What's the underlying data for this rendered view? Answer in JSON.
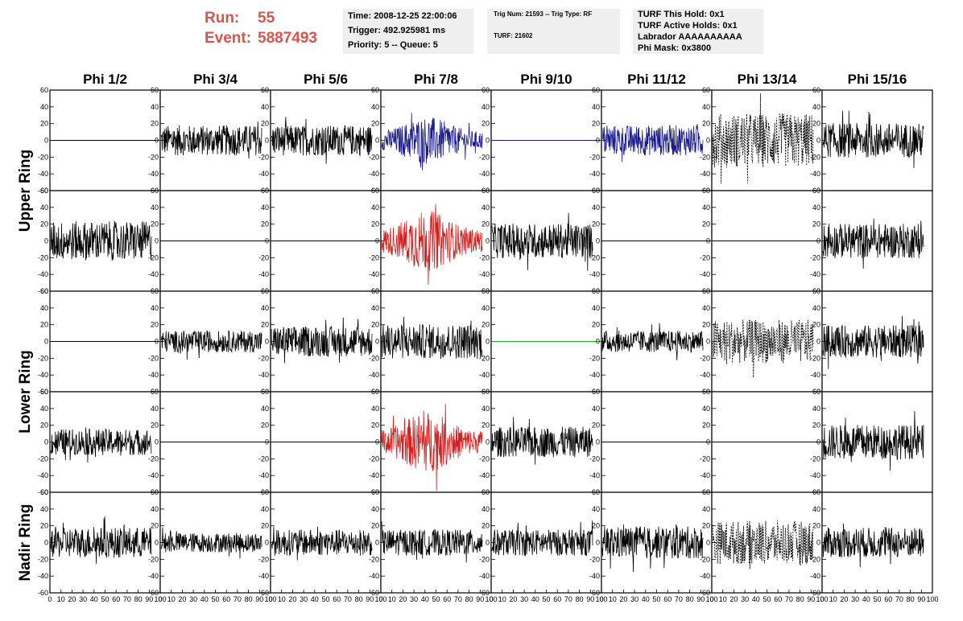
{
  "header": {
    "run_label": "Run:",
    "run_value": "55",
    "event_label": "Event:",
    "event_value": "5887493",
    "box1": [
      "Time: 2008-12-25 22:00:06",
      "Trigger: 492.925981 ms",
      "Priority: 5 -- Queue: 5"
    ],
    "box2": [
      "Trig Num: 21593 -- Trig Type: RF",
      "TURF: 21602"
    ],
    "box3": [
      "TURF This Hold: 0x1",
      "TURF Active Holds: 0x1",
      "Labrador AAAAAAAAAA",
      "Phi Mask: 0x3800"
    ]
  },
  "chart_data": {
    "type": "line",
    "title": "",
    "columns": [
      "Phi 1/2",
      "Phi 3/4",
      "Phi 5/6",
      "Phi 7/8",
      "Phi 9/10",
      "Phi 11/12",
      "Phi 13/14",
      "Phi 15/16"
    ],
    "ring_labels": [
      {
        "text": "Upper Ring",
        "rows": [
          0,
          1
        ]
      },
      {
        "text": "Lower Ring",
        "rows": [
          2,
          3
        ]
      },
      {
        "text": "Nadir Ring",
        "rows": [
          4
        ]
      }
    ],
    "ylim": [
      -60,
      60
    ],
    "y_ticks": [
      -60,
      -40,
      -20,
      0,
      20,
      40,
      60
    ],
    "xlim": [
      0,
      100
    ],
    "x_ticks": [
      0,
      10,
      20,
      30,
      40,
      50,
      60,
      70,
      80,
      90,
      100
    ],
    "samples": 260,
    "colors": {
      "normal": "#000000",
      "blue": "#1a1a8c",
      "red": "#cc2222",
      "green": "#22aa22"
    },
    "panels": [
      [
        {
          "style": "flat",
          "color": "normal"
        },
        {
          "style": "noise",
          "amp": 14,
          "color": "normal"
        },
        {
          "style": "noise",
          "amp": 14,
          "color": "normal"
        },
        {
          "style": "noise",
          "amp": 22,
          "env": true,
          "color": "blue"
        },
        {
          "style": "flat",
          "color": "blue"
        },
        {
          "style": "noise",
          "amp": 14,
          "color": "blue"
        },
        {
          "style": "dashed",
          "amp": 25,
          "color": "normal"
        },
        {
          "style": "noise",
          "amp": 16,
          "color": "normal"
        }
      ],
      [
        {
          "style": "noise",
          "amp": 18,
          "color": "normal"
        },
        {
          "style": "flat",
          "color": "normal"
        },
        {
          "style": "flat",
          "color": "normal"
        },
        {
          "style": "noise",
          "amp": 28,
          "env": true,
          "color": "red"
        },
        {
          "style": "noise",
          "amp": 16,
          "color": "normal"
        },
        {
          "style": "flat",
          "color": "normal"
        },
        {
          "style": "flat",
          "color": "normal"
        },
        {
          "style": "noise",
          "amp": 16,
          "color": "normal"
        }
      ],
      [
        {
          "style": "flat",
          "color": "normal"
        },
        {
          "style": "noise",
          "amp": 10,
          "color": "normal"
        },
        {
          "style": "noise",
          "amp": 14,
          "color": "normal"
        },
        {
          "style": "noise",
          "amp": 16,
          "color": "normal"
        },
        {
          "style": "flat",
          "color": "green"
        },
        {
          "style": "noise",
          "amp": 10,
          "color": "normal"
        },
        {
          "style": "dashed",
          "amp": 20,
          "color": "normal"
        },
        {
          "style": "noise",
          "amp": 15,
          "color": "normal"
        }
      ],
      [
        {
          "style": "noise",
          "amp": 12,
          "color": "normal"
        },
        {
          "style": "flat",
          "color": "normal"
        },
        {
          "style": "flat",
          "color": "normal"
        },
        {
          "style": "noise",
          "amp": 28,
          "env": true,
          "color": "red"
        },
        {
          "style": "noise",
          "amp": 14,
          "color": "normal"
        },
        {
          "style": "flat",
          "color": "normal"
        },
        {
          "style": "flat",
          "color": "normal"
        },
        {
          "style": "noise",
          "amp": 16,
          "color": "normal"
        }
      ],
      [
        {
          "style": "noise",
          "amp": 14,
          "color": "normal"
        },
        {
          "style": "noise",
          "amp": 9,
          "color": "normal"
        },
        {
          "style": "noise",
          "amp": 12,
          "color": "normal"
        },
        {
          "style": "noise",
          "amp": 12,
          "color": "normal"
        },
        {
          "style": "noise",
          "amp": 12,
          "color": "normal"
        },
        {
          "style": "noise",
          "amp": 15,
          "color": "normal"
        },
        {
          "style": "dashed",
          "amp": 20,
          "color": "normal"
        },
        {
          "style": "noise",
          "amp": 14,
          "color": "normal"
        }
      ]
    ]
  }
}
